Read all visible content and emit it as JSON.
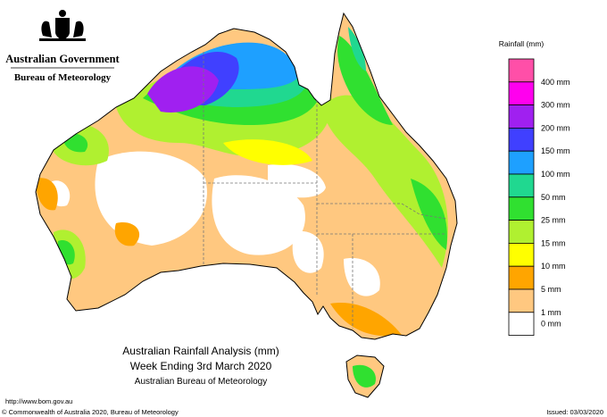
{
  "header": {
    "government": "Australian Government",
    "agency": "Bureau of Meteorology"
  },
  "map": {
    "title": "Australian Rainfall Analysis (mm)",
    "subtitle": "Week Ending 3rd March 2020",
    "source": "Australian Bureau of Meteorology"
  },
  "legend": {
    "title": "Rainfall (mm)",
    "items": [
      {
        "label": "400 mm",
        "color": "#ff4fa8"
      },
      {
        "label": "300 mm",
        "color": "#ff00ee"
      },
      {
        "label": "200 mm",
        "color": "#a020f0"
      },
      {
        "label": "150 mm",
        "color": "#4040ff"
      },
      {
        "label": "100 mm",
        "color": "#1ea0ff"
      },
      {
        "label": "50 mm",
        "color": "#20d890"
      },
      {
        "label": "25 mm",
        "color": "#30e030"
      },
      {
        "label": "15 mm",
        "color": "#b0f030"
      },
      {
        "label": "10 mm",
        "color": "#ffff00"
      },
      {
        "label": "5 mm",
        "color": "#ffa500"
      },
      {
        "label": "1 mm",
        "color": "#ffc880"
      },
      {
        "label": "0 mm",
        "color": "#ffffff"
      }
    ]
  },
  "footer": {
    "url": "http://www.bom.gov.au",
    "copyright": "© Commonwealth of Australia 2020, Bureau of Meteorology",
    "issued": "Issued: 03/03/2020"
  }
}
